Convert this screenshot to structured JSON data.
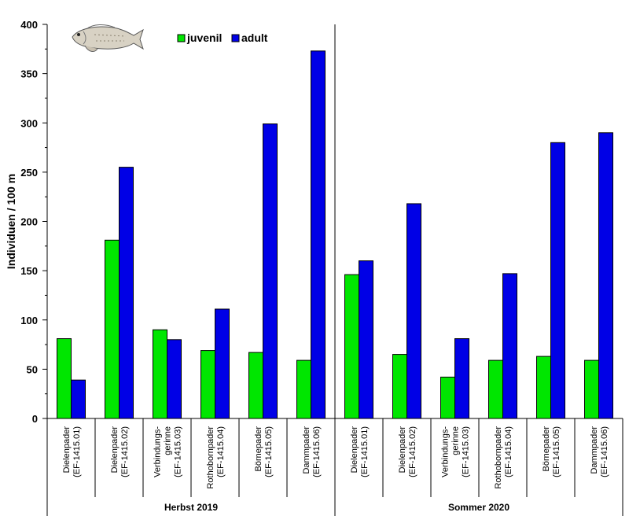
{
  "chart_data": {
    "type": "bar",
    "title": "",
    "xlabel": "",
    "ylabel": "Individuen / 100 m",
    "ylim": [
      0,
      400
    ],
    "yticks": [
      0,
      50,
      100,
      150,
      200,
      250,
      300,
      350,
      400
    ],
    "grid": false,
    "legend_position": "top-center",
    "categories": [
      [
        "Dielenpader",
        "(EF-1415.01)"
      ],
      [
        "Dielenpader",
        "(EF-1415.02)"
      ],
      [
        "Verbindungs-",
        "gerinne",
        "(EF-1415.03)"
      ],
      [
        "Rothobornpader",
        "(EF-1415.04)"
      ],
      [
        "Börnepader",
        "(EF-1415.05)"
      ],
      [
        "Dammpader",
        "(EF-1415.06)"
      ],
      [
        "Dielenpader",
        "(EF-1415.01)"
      ],
      [
        "Dielenpader",
        "(EF-1415.02)"
      ],
      [
        "Verbindungs-",
        "gerinne",
        "(EF-1415.03)"
      ],
      [
        "Rothobornpader",
        "(EF-1415.04)"
      ],
      [
        "Börnepader",
        "(EF-1415.05)"
      ],
      [
        "Dammpader",
        "(EF-1415.06)"
      ]
    ],
    "groups": [
      {
        "label": "Herbst 2019",
        "start": 0,
        "end": 6
      },
      {
        "label": "Sommer 2020",
        "start": 6,
        "end": 12
      }
    ],
    "series": [
      {
        "name": "juvenil",
        "color": "#00e600",
        "values": [
          81,
          181,
          90,
          69,
          67,
          59,
          146,
          65,
          42,
          59,
          63,
          59
        ]
      },
      {
        "name": "adult",
        "color": "#0000e6",
        "values": [
          39,
          255,
          80,
          111,
          299,
          373,
          160,
          218,
          81,
          147,
          280,
          290
        ]
      }
    ]
  }
}
